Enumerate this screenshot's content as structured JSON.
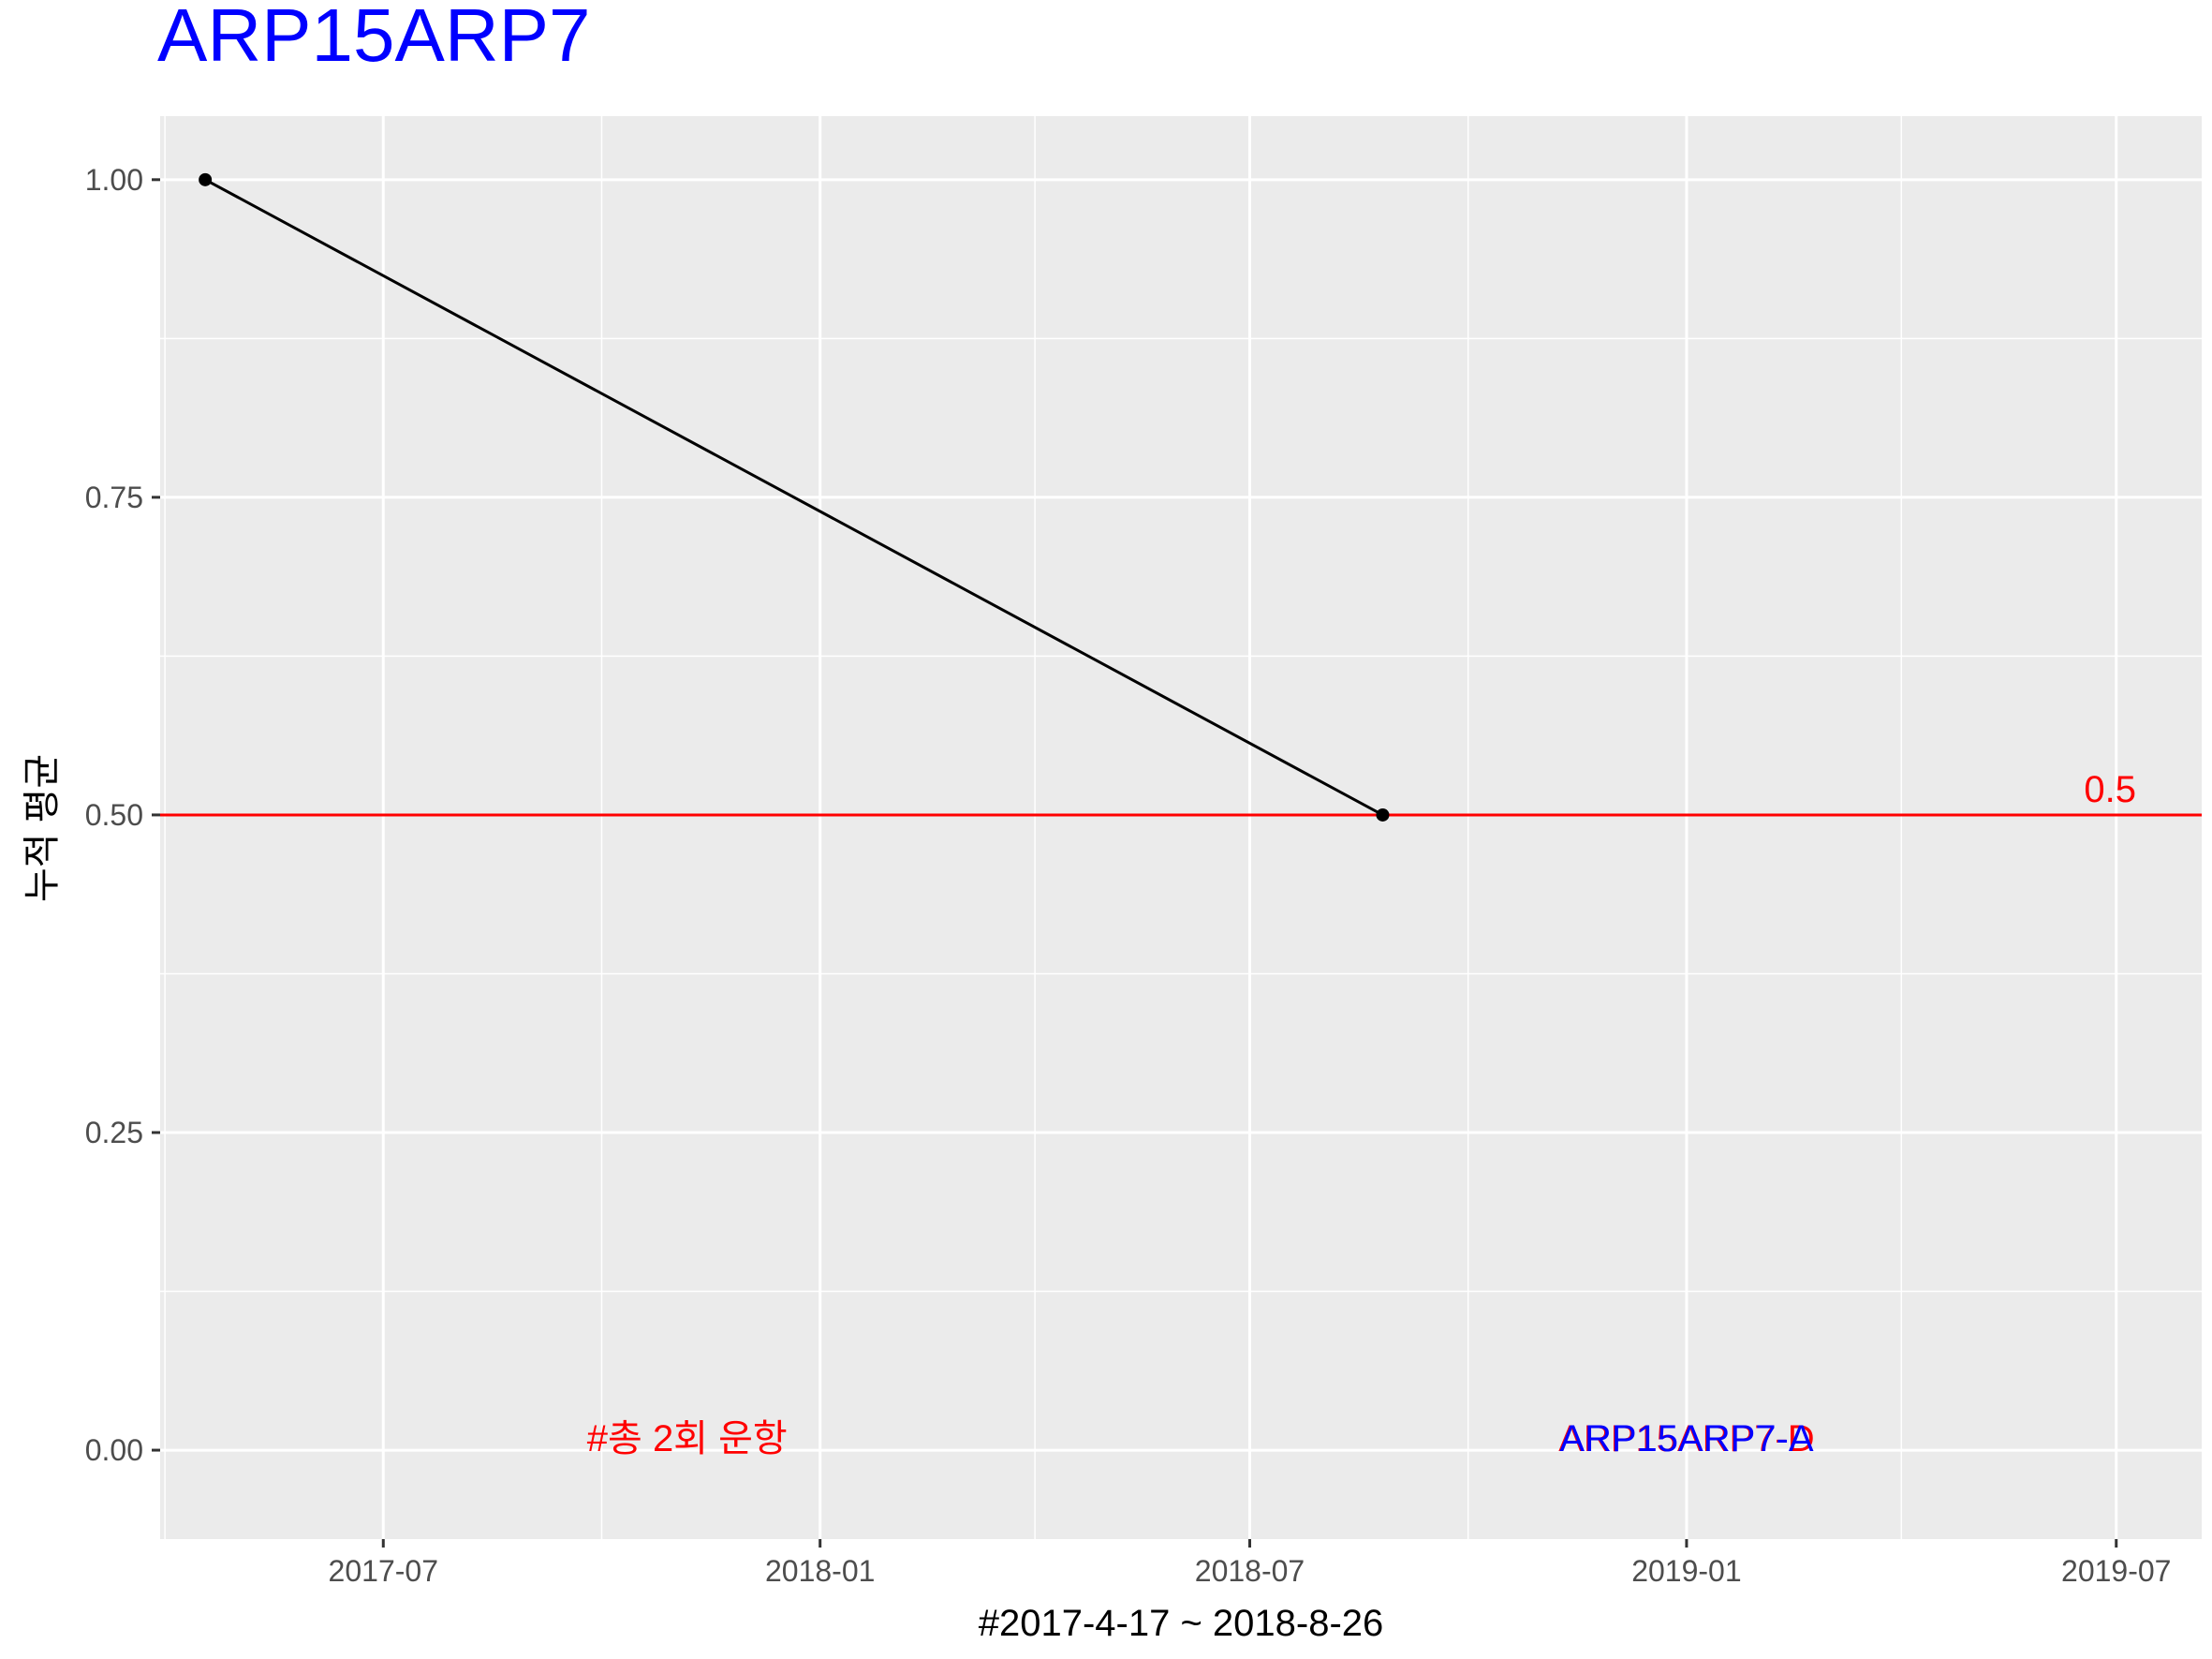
{
  "chart_data": {
    "type": "line",
    "title": "ARP15ARP7",
    "xlabel": "#2017-4-17 ~ 2018-8-26",
    "ylabel": "누적 평균",
    "x": [
      "2017-04-17",
      "2018-08-26"
    ],
    "y": [
      1.0,
      0.5
    ],
    "xlim": [
      "2017-03-29",
      "2019-08-06"
    ],
    "ylim": [
      -0.07,
      1.05
    ],
    "x_ticks": [
      "2017-07",
      "2018-01",
      "2018-07",
      "2019-01",
      "2019-07"
    ],
    "y_ticks": [
      "0.00",
      "0.25",
      "0.50",
      "0.75",
      "1.00"
    ],
    "reference_line": {
      "y": 0.5,
      "label": "0.5",
      "color": "#FF0000"
    },
    "annotations": [
      {
        "text": "#총 2회 운항",
        "x": "2017-11-06",
        "y": 0.0,
        "color": "#FF0000"
      },
      {
        "text": "ARP15ARP7-D",
        "x": "2019-01-01",
        "y": 0.0,
        "color": "#FF0000"
      },
      {
        "text": "ARP15ARP7-A",
        "x": "2019-01-01",
        "y": 0.0,
        "color": "#0000FF"
      }
    ],
    "grid": true,
    "colors": {
      "title": "#0000FF",
      "line": "#000000",
      "panel": "#EBEBEB",
      "gridline": "#FFFFFF"
    }
  }
}
